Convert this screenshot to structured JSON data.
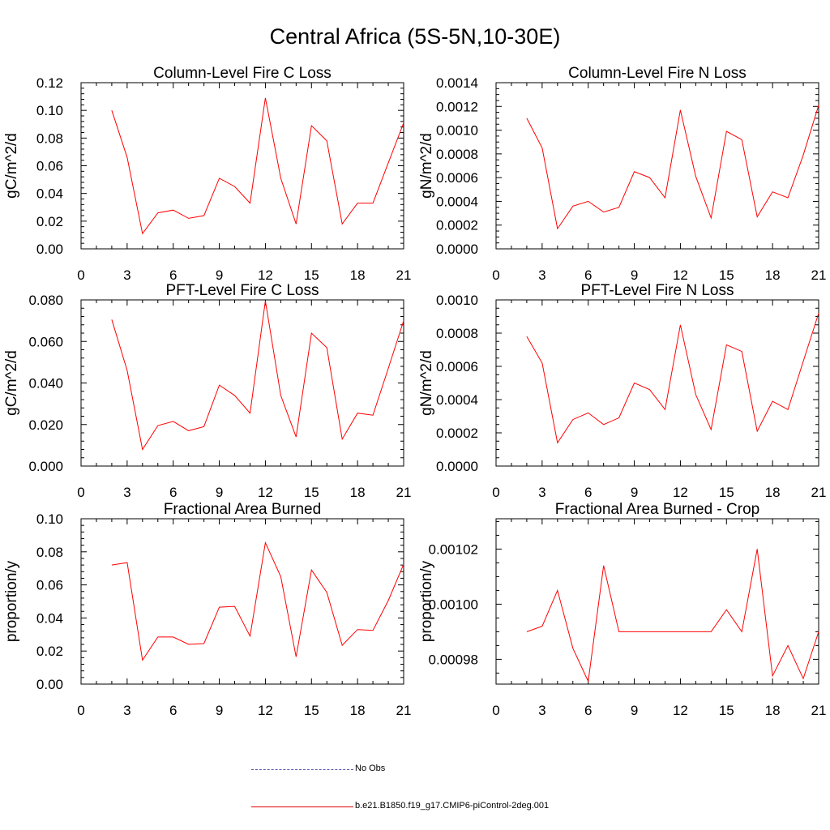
{
  "title": "Central Africa (5S-5N,10-30E)",
  "line_color": "#ff0000",
  "legend": {
    "obs_label": "No Obs",
    "model_label": "b.e21.B1850.f19_g17.CMIP6-piControl-2deg.001"
  },
  "chart_data": [
    {
      "type": "line",
      "title": "Column-Level Fire C Loss",
      "ylabel": "gC/m^2/d",
      "xlim": [
        0,
        21
      ],
      "ylim": [
        0,
        0.12
      ],
      "xticks": [
        0,
        3,
        6,
        9,
        12,
        15,
        18,
        21
      ],
      "xtick_labels": [
        "0",
        "3",
        "6",
        "9",
        "12",
        "15",
        "18",
        "21"
      ],
      "yticks": [
        0,
        0.02,
        0.04,
        0.06,
        0.08,
        0.1,
        0.12
      ],
      "ytick_labels": [
        "0.00",
        "0.02",
        "0.04",
        "0.06",
        "0.08",
        "0.10",
        "0.12"
      ],
      "yminor": 5,
      "x": [
        2,
        3,
        4,
        5,
        6,
        7,
        8,
        9,
        10,
        11,
        12,
        13,
        14,
        15,
        16,
        17,
        18,
        19,
        20,
        21
      ],
      "series": [
        {
          "name": "b.e21.B1850.f19_g17.CMIP6-piControl-2deg.001",
          "values": [
            0.1,
            0.066,
            0.011,
            0.026,
            0.028,
            0.022,
            0.024,
            0.051,
            0.045,
            0.033,
            0.109,
            0.051,
            0.018,
            0.089,
            0.078,
            0.018,
            0.033,
            0.033,
            0.062,
            0.091
          ]
        }
      ]
    },
    {
      "type": "line",
      "title": "Column-Level Fire N Loss",
      "ylabel": "gN/m^2/d",
      "xlim": [
        0,
        21
      ],
      "ylim": [
        0,
        0.0014
      ],
      "xticks": [
        0,
        3,
        6,
        9,
        12,
        15,
        18,
        21
      ],
      "xtick_labels": [
        "0",
        "3",
        "6",
        "9",
        "12",
        "15",
        "18",
        "21"
      ],
      "yticks": [
        0,
        0.0002,
        0.0004,
        0.0006,
        0.0008,
        0.001,
        0.0012,
        0.0014
      ],
      "ytick_labels": [
        "0.0000",
        "0.0002",
        "0.0004",
        "0.0006",
        "0.0008",
        "0.0010",
        "0.0012",
        "0.0014"
      ],
      "yminor": 4,
      "x": [
        2,
        3,
        4,
        5,
        6,
        7,
        8,
        9,
        10,
        11,
        12,
        13,
        14,
        15,
        16,
        17,
        18,
        19,
        20,
        21
      ],
      "series": [
        {
          "name": "b.e21.B1850.f19_g17.CMIP6-piControl-2deg.001",
          "values": [
            0.0011,
            0.00085,
            0.00017,
            0.00036,
            0.0004,
            0.00031,
            0.00035,
            0.00065,
            0.0006,
            0.00043,
            0.00117,
            0.00061,
            0.00026,
            0.00099,
            0.00092,
            0.00027,
            0.00048,
            0.00043,
            0.00079,
            0.00121
          ]
        }
      ]
    },
    {
      "type": "line",
      "title": "PFT-Level Fire C Loss",
      "ylabel": "gC/m^2/d",
      "xlim": [
        0,
        21
      ],
      "ylim": [
        0,
        0.08
      ],
      "xticks": [
        0,
        3,
        6,
        9,
        12,
        15,
        18,
        21
      ],
      "xtick_labels": [
        "0",
        "3",
        "6",
        "9",
        "12",
        "15",
        "18",
        "21"
      ],
      "yticks": [
        0,
        0.02,
        0.04,
        0.06,
        0.08
      ],
      "ytick_labels": [
        "0.000",
        "0.020",
        "0.040",
        "0.060",
        "0.080"
      ],
      "yminor": 5,
      "x": [
        2,
        3,
        4,
        5,
        6,
        7,
        8,
        9,
        10,
        11,
        12,
        13,
        14,
        15,
        16,
        17,
        18,
        19,
        20,
        21
      ],
      "series": [
        {
          "name": "b.e21.B1850.f19_g17.CMIP6-piControl-2deg.001",
          "values": [
            0.0705,
            0.046,
            0.008,
            0.0195,
            0.0215,
            0.017,
            0.019,
            0.039,
            0.034,
            0.0255,
            0.0795,
            0.034,
            0.014,
            0.064,
            0.057,
            0.013,
            0.0255,
            0.0245,
            0.047,
            0.07
          ]
        }
      ]
    },
    {
      "type": "line",
      "title": "PFT-Level Fire N Loss",
      "ylabel": "gN/m^2/d",
      "xlim": [
        0,
        21
      ],
      "ylim": [
        0,
        0.001
      ],
      "xticks": [
        0,
        3,
        6,
        9,
        12,
        15,
        18,
        21
      ],
      "xtick_labels": [
        "0",
        "3",
        "6",
        "9",
        "12",
        "15",
        "18",
        "21"
      ],
      "yticks": [
        0,
        0.0002,
        0.0004,
        0.0006,
        0.0008,
        0.001
      ],
      "ytick_labels": [
        "0.0000",
        "0.0002",
        "0.0004",
        "0.0006",
        "0.0008",
        "0.0010"
      ],
      "yminor": 4,
      "x": [
        2,
        3,
        4,
        5,
        6,
        7,
        8,
        9,
        10,
        11,
        12,
        13,
        14,
        15,
        16,
        17,
        18,
        19,
        20,
        21
      ],
      "series": [
        {
          "name": "b.e21.B1850.f19_g17.CMIP6-piControl-2deg.001",
          "values": [
            0.00078,
            0.00062,
            0.00014,
            0.00028,
            0.00032,
            0.00025,
            0.00029,
            0.0005,
            0.00046,
            0.00034,
            0.00085,
            0.00043,
            0.00022,
            0.00073,
            0.00069,
            0.00021,
            0.00039,
            0.00034,
            0.00063,
            0.00092
          ]
        }
      ]
    },
    {
      "type": "line",
      "title": "Fractional Area Burned",
      "ylabel": "proportion/y",
      "xlim": [
        0,
        21
      ],
      "ylim": [
        0,
        0.1
      ],
      "xticks": [
        0,
        3,
        6,
        9,
        12,
        15,
        18,
        21
      ],
      "xtick_labels": [
        "0",
        "3",
        "6",
        "9",
        "12",
        "15",
        "18",
        "21"
      ],
      "yticks": [
        0,
        0.02,
        0.04,
        0.06,
        0.08,
        0.1
      ],
      "ytick_labels": [
        "0.00",
        "0.02",
        "0.04",
        "0.06",
        "0.08",
        "0.10"
      ],
      "yminor": 5,
      "x": [
        2,
        3,
        4,
        5,
        6,
        7,
        8,
        9,
        10,
        11,
        12,
        13,
        14,
        15,
        16,
        17,
        18,
        19,
        20,
        21
      ],
      "series": [
        {
          "name": "b.e21.B1850.f19_g17.CMIP6-piControl-2deg.001",
          "values": [
            0.072,
            0.0735,
            0.0145,
            0.0285,
            0.0285,
            0.024,
            0.0245,
            0.0465,
            0.047,
            0.029,
            0.0855,
            0.065,
            0.0165,
            0.069,
            0.0555,
            0.0235,
            0.033,
            0.0325,
            0.0505,
            0.0725
          ]
        }
      ]
    },
    {
      "type": "line",
      "title": "Fractional Area Burned - Crop",
      "ylabel": "proportion/y",
      "xlim": [
        0,
        21
      ],
      "ylim": [
        0.000971,
        0.001031
      ],
      "xticks": [
        0,
        3,
        6,
        9,
        12,
        15,
        18,
        21
      ],
      "xtick_labels": [
        "0",
        "3",
        "6",
        "9",
        "12",
        "15",
        "18",
        "21"
      ],
      "yticks": [
        0.00098,
        0.001,
        0.00102
      ],
      "ytick_labels": [
        "0.00098",
        "0.00100",
        "0.00102"
      ],
      "yminor": 4,
      "x": [
        2,
        3,
        4,
        5,
        6,
        7,
        8,
        9,
        10,
        11,
        12,
        13,
        14,
        15,
        16,
        17,
        18,
        19,
        20,
        21
      ],
      "series": [
        {
          "name": "b.e21.B1850.f19_g17.CMIP6-piControl-2deg.001",
          "values": [
            0.00099,
            0.000992,
            0.001005,
            0.000984,
            0.000972,
            0.001014,
            0.00099,
            0.00099,
            0.00099,
            0.00099,
            0.00099,
            0.00099,
            0.00099,
            0.000998,
            0.00099,
            0.00102,
            0.000974,
            0.000985,
            0.000973,
            0.00099
          ]
        }
      ]
    }
  ]
}
